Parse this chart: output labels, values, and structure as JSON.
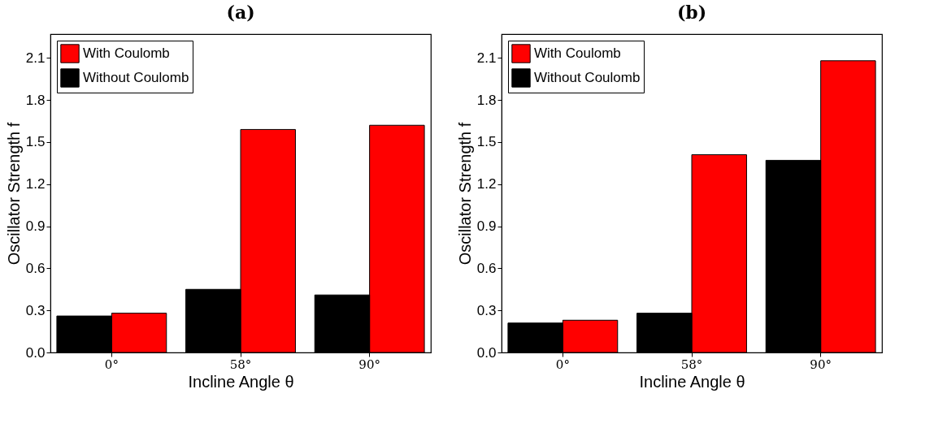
{
  "chart_data": [
    {
      "type": "bar",
      "title": "(a)",
      "xlabel": "Incline Angle θ",
      "ylabel": "Oscillator Strength f",
      "categories": [
        "0°",
        "58°",
        "90°"
      ],
      "series": [
        {
          "name": "With Coulomb",
          "color": "#ff0000",
          "values": [
            0.28,
            1.59,
            1.62
          ]
        },
        {
          "name": "Without Coulomb",
          "color": "#000000",
          "values": [
            0.26,
            0.45,
            0.41
          ]
        }
      ],
      "ylim": [
        0,
        2.27
      ],
      "yticks": [
        {
          "value": 0,
          "label": "0.0"
        },
        0.3,
        0.6,
        0.9,
        1.2,
        1.5,
        1.8,
        2.1
      ],
      "grid": false,
      "legend": "top left"
    },
    {
      "type": "bar",
      "title": "(b)",
      "xlabel": "Incline Angle θ",
      "ylabel": "Oscillator Strength f",
      "categories": [
        "0°",
        "58°",
        "90°"
      ],
      "series": [
        {
          "name": "With Coulomb",
          "color": "#ff0000",
          "values": [
            0.23,
            1.41,
            2.08
          ]
        },
        {
          "name": "Without Coulomb",
          "color": "#000000",
          "values": [
            0.21,
            0.28,
            1.37
          ]
        }
      ],
      "ylim": [
        0,
        2.27
      ],
      "yticks": [
        {
          "value": 0,
          "label": "0.0"
        },
        0.3,
        0.6,
        0.9,
        1.2,
        1.5,
        1.8,
        2.1
      ],
      "grid": false,
      "legend": "top left"
    }
  ]
}
